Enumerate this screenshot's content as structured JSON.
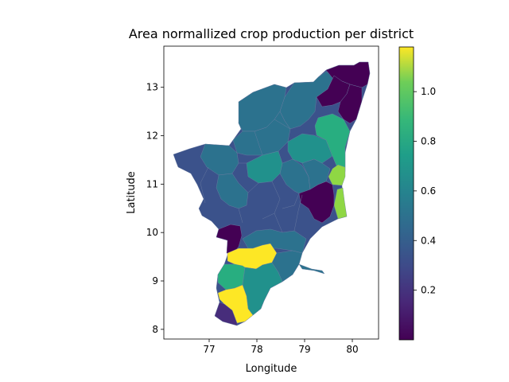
{
  "figure": {
    "title": "Area normallized crop production per district",
    "xlabel": "Longitude",
    "ylabel": "Latitude"
  },
  "axes": {
    "xlim": [
      76.05,
      80.55
    ],
    "ylim": [
      7.8,
      13.85
    ],
    "xticks": [
      77,
      78,
      79,
      80
    ],
    "yticks": [
      8,
      9,
      10,
      11,
      12,
      13
    ]
  },
  "colorbar": {
    "min": 0.0,
    "max": 1.18,
    "ticks": [
      0.2,
      0.4,
      0.6,
      0.8,
      1.0
    ],
    "tick_labels": [
      "0.2",
      "0.4",
      "0.6",
      "0.8",
      "1.0"
    ],
    "colormap": "viridis"
  },
  "colors": {
    "c_dark": "#440154",
    "c_purple": "#472d7b",
    "c_indigo": "#3b528b",
    "c_blue": "#2c728e",
    "c_teal": "#21918c",
    "c_green": "#28ae80",
    "c_lime": "#8fd744",
    "c_yellow": "#fde725"
  },
  "chart_data": {
    "type": "choropleth",
    "title": "Area normallized crop production per district",
    "xlabel": "Longitude",
    "ylabel": "Latitude",
    "value_range": [
      0.0,
      1.18
    ],
    "regions": [
      {
        "lon": 79.9,
        "lat": 13.2,
        "value": 0.02
      },
      {
        "lon": 79.4,
        "lat": 12.9,
        "value": 0.02
      },
      {
        "lon": 80.1,
        "lat": 12.7,
        "value": 0.02
      },
      {
        "lon": 79.7,
        "lat": 12.2,
        "value": 0.7
      },
      {
        "lon": 79.75,
        "lat": 11.6,
        "value": 0.7
      },
      {
        "lon": 79.75,
        "lat": 11.2,
        "value": 0.95
      },
      {
        "lon": 79.78,
        "lat": 10.6,
        "value": 0.95
      },
      {
        "lon": 79.3,
        "lat": 10.8,
        "value": 0.02
      },
      {
        "lon": 79.1,
        "lat": 11.9,
        "value": 0.65
      },
      {
        "lon": 79.2,
        "lat": 11.3,
        "value": 0.45
      },
      {
        "lon": 78.5,
        "lat": 12.3,
        "value": 0.3
      },
      {
        "lon": 77.6,
        "lat": 12.3,
        "value": 0.25
      },
      {
        "lon": 78.0,
        "lat": 11.8,
        "value": 0.3
      },
      {
        "lon": 78.4,
        "lat": 11.3,
        "value": 0.55
      },
      {
        "lon": 77.2,
        "lat": 11.3,
        "value": 0.2
      },
      {
        "lon": 76.8,
        "lat": 11.3,
        "value": 0.2
      },
      {
        "lon": 77.4,
        "lat": 10.9,
        "value": 0.3
      },
      {
        "lon": 78.7,
        "lat": 10.8,
        "value": 0.25
      },
      {
        "lon": 78.1,
        "lat": 10.4,
        "value": 0.25
      },
      {
        "lon": 78.8,
        "lat": 10.0,
        "value": 0.3
      },
      {
        "lon": 77.35,
        "lat": 9.95,
        "value": 0.02
      },
      {
        "lon": 77.9,
        "lat": 9.9,
        "value": 0.3
      },
      {
        "lon": 78.1,
        "lat": 9.5,
        "value": 1.15
      },
      {
        "lon": 78.8,
        "lat": 9.4,
        "value": 0.45
      },
      {
        "lon": 77.5,
        "lat": 9.1,
        "value": 0.75
      },
      {
        "lon": 78.0,
        "lat": 8.9,
        "value": 0.5
      },
      {
        "lon": 77.6,
        "lat": 8.5,
        "value": 1.15
      },
      {
        "lon": 77.3,
        "lat": 8.3,
        "value": 0.2
      }
    ]
  }
}
